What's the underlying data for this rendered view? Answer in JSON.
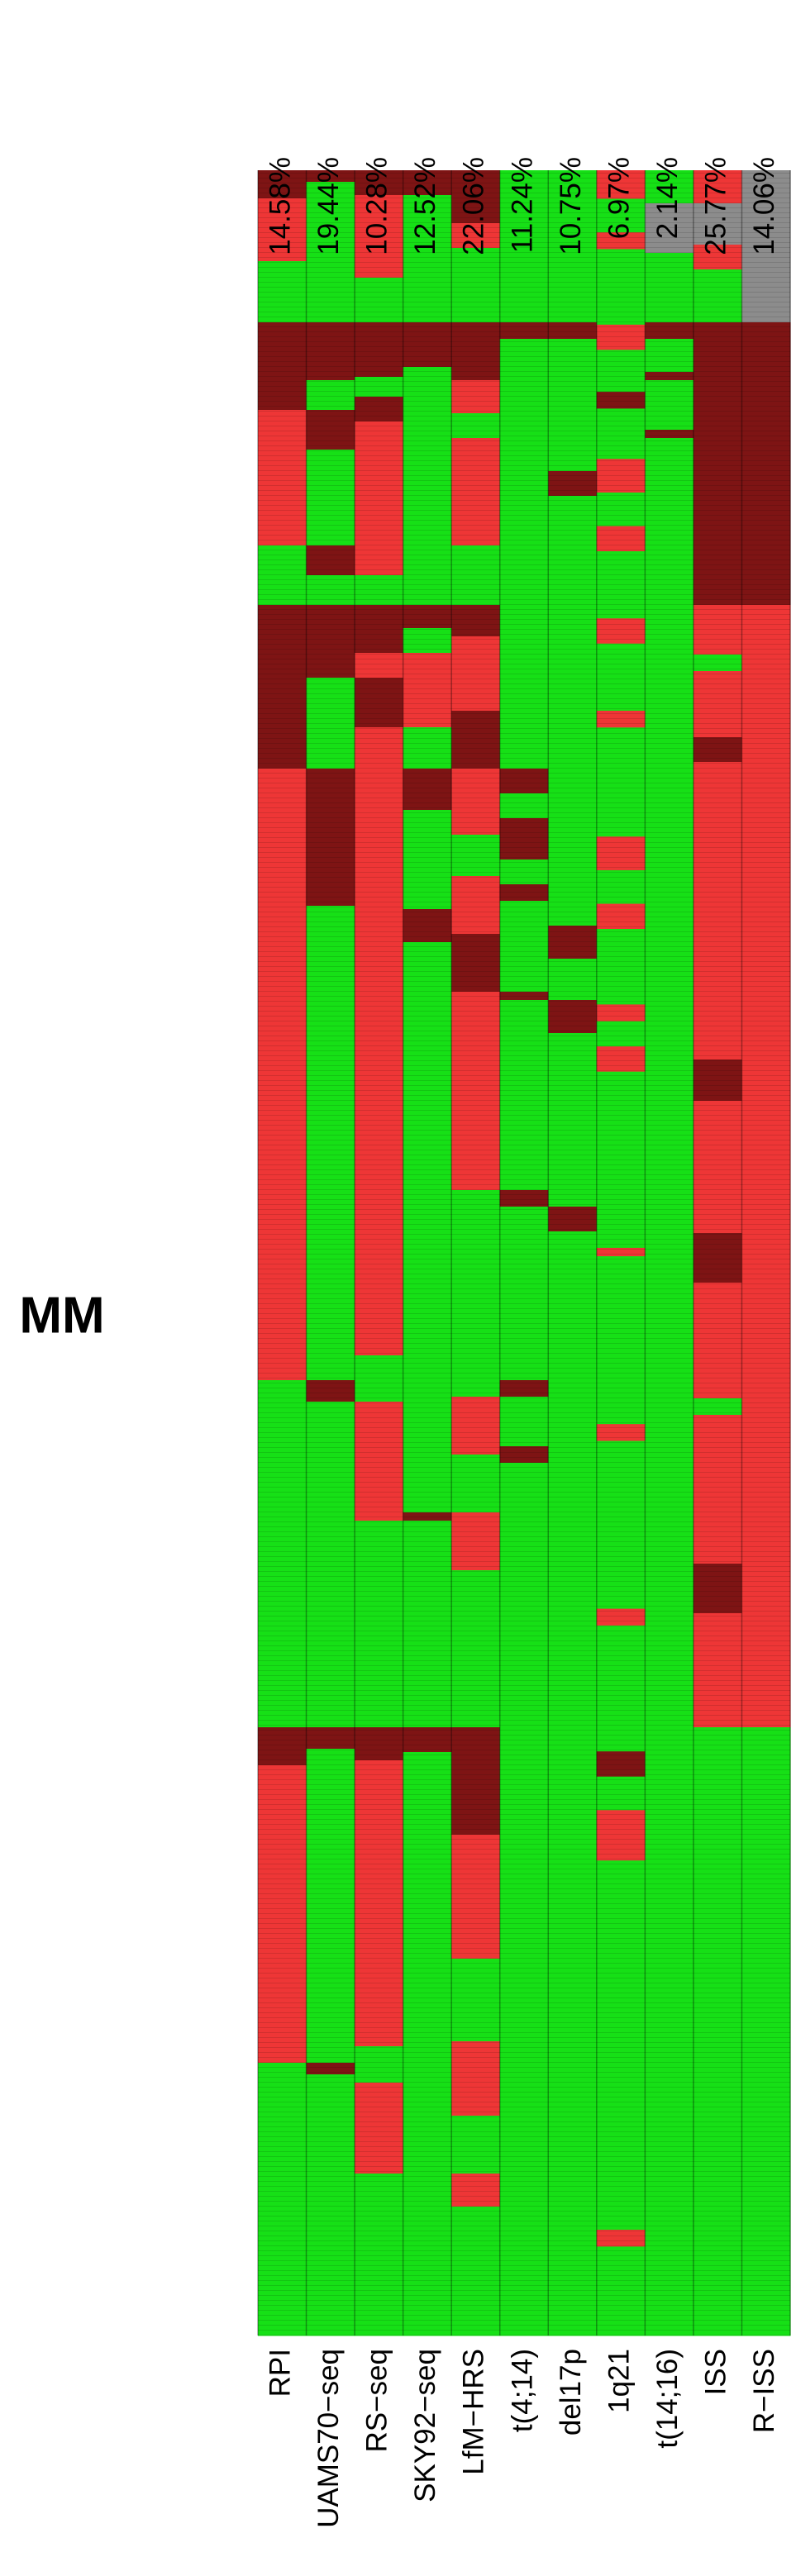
{
  "chart_data": {
    "type": "heatmap",
    "row_label": "MM",
    "categories": [
      "RPI",
      "UAMS70−seq",
      "RS−seq",
      "SKY92−seq",
      "LfM−HRS",
      "t(4;14)",
      "del17p",
      "1q21",
      "t(14;16)",
      "ISS",
      "R−ISS"
    ],
    "percent_labels": [
      "14.58%",
      "19.44%",
      "10.28%",
      "12.52%",
      "22.06%",
      "11.24%",
      "10.75%",
      "6.97%",
      "2.14%",
      "25.77%",
      "14.06%"
    ],
    "colors": [
      "#7e1414",
      "#ee3636",
      "#16e016",
      "#8c8c8c"
    ],
    "columns": [
      [
        [
          0,
          17
        ],
        [
          1,
          38
        ],
        [
          2,
          37
        ],
        [
          0,
          53
        ],
        [
          1,
          82
        ],
        [
          2,
          36
        ],
        [
          0,
          99
        ],
        [
          1,
          370
        ],
        [
          2,
          210
        ],
        [
          0,
          23
        ],
        [
          1,
          180
        ],
        [
          2,
          165
        ]
      ],
      [
        [
          0,
          7
        ],
        [
          2,
          85
        ],
        [
          0,
          35
        ],
        [
          2,
          18
        ],
        [
          0,
          24
        ],
        [
          2,
          58
        ],
        [
          0,
          18
        ],
        [
          2,
          18
        ],
        [
          0,
          44
        ],
        [
          2,
          55
        ],
        [
          0,
          83
        ],
        [
          2,
          287
        ],
        [
          0,
          13
        ],
        [
          2,
          197
        ],
        [
          0,
          13
        ],
        [
          2,
          190
        ],
        [
          0,
          7
        ],
        [
          2,
          158
        ]
      ],
      [
        [
          0,
          15
        ],
        [
          1,
          50
        ],
        [
          2,
          27
        ],
        [
          0,
          33
        ],
        [
          2,
          12
        ],
        [
          0,
          15
        ],
        [
          1,
          93
        ],
        [
          2,
          18
        ],
        [
          0,
          29
        ],
        [
          1,
          15
        ],
        [
          0,
          30
        ],
        [
          1,
          380
        ],
        [
          2,
          28
        ],
        [
          1,
          72
        ],
        [
          2,
          125
        ],
        [
          0,
          20
        ],
        [
          1,
          173
        ],
        [
          2,
          22
        ],
        [
          1,
          55
        ],
        [
          2,
          98
        ]
      ],
      [
        [
          0,
          15
        ],
        [
          2,
          77
        ],
        [
          0,
          27
        ],
        [
          2,
          144
        ],
        [
          0,
          14
        ],
        [
          2,
          15
        ],
        [
          1,
          45
        ],
        [
          2,
          25
        ],
        [
          0,
          25
        ],
        [
          2,
          60
        ],
        [
          0,
          20
        ],
        [
          2,
          265
        ],
        [
          2,
          80
        ],
        [
          0,
          5
        ],
        [
          2,
          125
        ],
        [
          0,
          15
        ],
        [
          2,
          353
        ]
      ],
      [
        [
          0,
          32
        ],
        [
          1,
          15
        ],
        [
          2,
          45
        ],
        [
          0,
          35
        ],
        [
          1,
          20
        ],
        [
          2,
          15
        ],
        [
          1,
          20
        ],
        [
          1,
          45
        ],
        [
          2,
          36
        ],
        [
          0,
          19
        ],
        [
          1,
          45
        ],
        [
          0,
          35
        ],
        [
          1,
          40
        ],
        [
          2,
          25
        ],
        [
          1,
          35
        ],
        [
          0,
          35
        ],
        [
          1,
          120
        ],
        [
          2,
          125
        ],
        [
          1,
          35
        ],
        [
          2,
          35
        ],
        [
          1,
          35
        ],
        [
          2,
          95
        ],
        [
          0,
          65
        ],
        [
          1,
          75
        ],
        [
          2,
          50
        ],
        [
          1,
          45
        ],
        [
          2,
          35
        ],
        [
          1,
          20
        ],
        [
          2,
          78
        ]
      ],
      [
        [
          2,
          92
        ],
        [
          0,
          10
        ],
        [
          2,
          260
        ],
        [
          0,
          15
        ],
        [
          2,
          15
        ],
        [
          0,
          25
        ],
        [
          2,
          15
        ],
        [
          0,
          10
        ],
        [
          2,
          55
        ],
        [
          0,
          5
        ],
        [
          2,
          115
        ],
        [
          0,
          10
        ],
        [
          2,
          105
        ],
        [
          0,
          10
        ],
        [
          2,
          30
        ],
        [
          0,
          10
        ],
        [
          2,
          528
        ]
      ],
      [
        [
          2,
          92
        ],
        [
          0,
          10
        ],
        [
          2,
          80
        ],
        [
          0,
          15
        ],
        [
          2,
          260
        ],
        [
          0,
          20
        ],
        [
          2,
          25
        ],
        [
          0,
          20
        ],
        [
          2,
          105
        ],
        [
          0,
          15
        ],
        [
          2,
          668
        ]
      ],
      [
        [
          1,
          17
        ],
        [
          2,
          20
        ],
        [
          1,
          10
        ],
        [
          2,
          45
        ],
        [
          1,
          15
        ],
        [
          2,
          25
        ],
        [
          0,
          10
        ],
        [
          2,
          30
        ],
        [
          1,
          20
        ],
        [
          2,
          20
        ],
        [
          1,
          15
        ],
        [
          2,
          40
        ],
        [
          1,
          15
        ],
        [
          2,
          40
        ],
        [
          1,
          10
        ],
        [
          2,
          65
        ],
        [
          1,
          20
        ],
        [
          2,
          20
        ],
        [
          1,
          15
        ],
        [
          2,
          45
        ],
        [
          1,
          10
        ],
        [
          2,
          15
        ],
        [
          1,
          15
        ],
        [
          2,
          105
        ],
        [
          1,
          5
        ],
        [
          2,
          100
        ],
        [
          1,
          10
        ],
        [
          2,
          100
        ],
        [
          1,
          10
        ],
        [
          2,
          75
        ],
        [
          0,
          15
        ],
        [
          2,
          20
        ],
        [
          1,
          30
        ],
        [
          2,
          220
        ],
        [
          1,
          10
        ],
        [
          2,
          53
        ]
      ],
      [
        [
          2,
          20
        ],
        [
          3,
          30
        ],
        [
          2,
          42
        ],
        [
          0,
          10
        ],
        [
          2,
          20
        ],
        [
          0,
          5
        ],
        [
          2,
          30
        ],
        [
          0,
          5
        ],
        [
          2,
          1148
        ]
      ],
      [
        [
          1,
          20
        ],
        [
          3,
          25
        ],
        [
          1,
          15
        ],
        [
          2,
          32
        ],
        [
          0,
          171
        ],
        [
          1,
          30
        ],
        [
          2,
          10
        ],
        [
          1,
          40
        ],
        [
          0,
          15
        ],
        [
          1,
          180
        ],
        [
          0,
          25
        ],
        [
          1,
          80
        ],
        [
          0,
          30
        ],
        [
          1,
          70
        ],
        [
          2,
          10
        ],
        [
          1,
          90
        ],
        [
          0,
          30
        ],
        [
          1,
          69
        ],
        [
          2,
          368
        ]
      ],
      [
        [
          3,
          92
        ],
        [
          0,
          171
        ],
        [
          1,
          679
        ],
        [
          2,
          368
        ]
      ]
    ]
  }
}
